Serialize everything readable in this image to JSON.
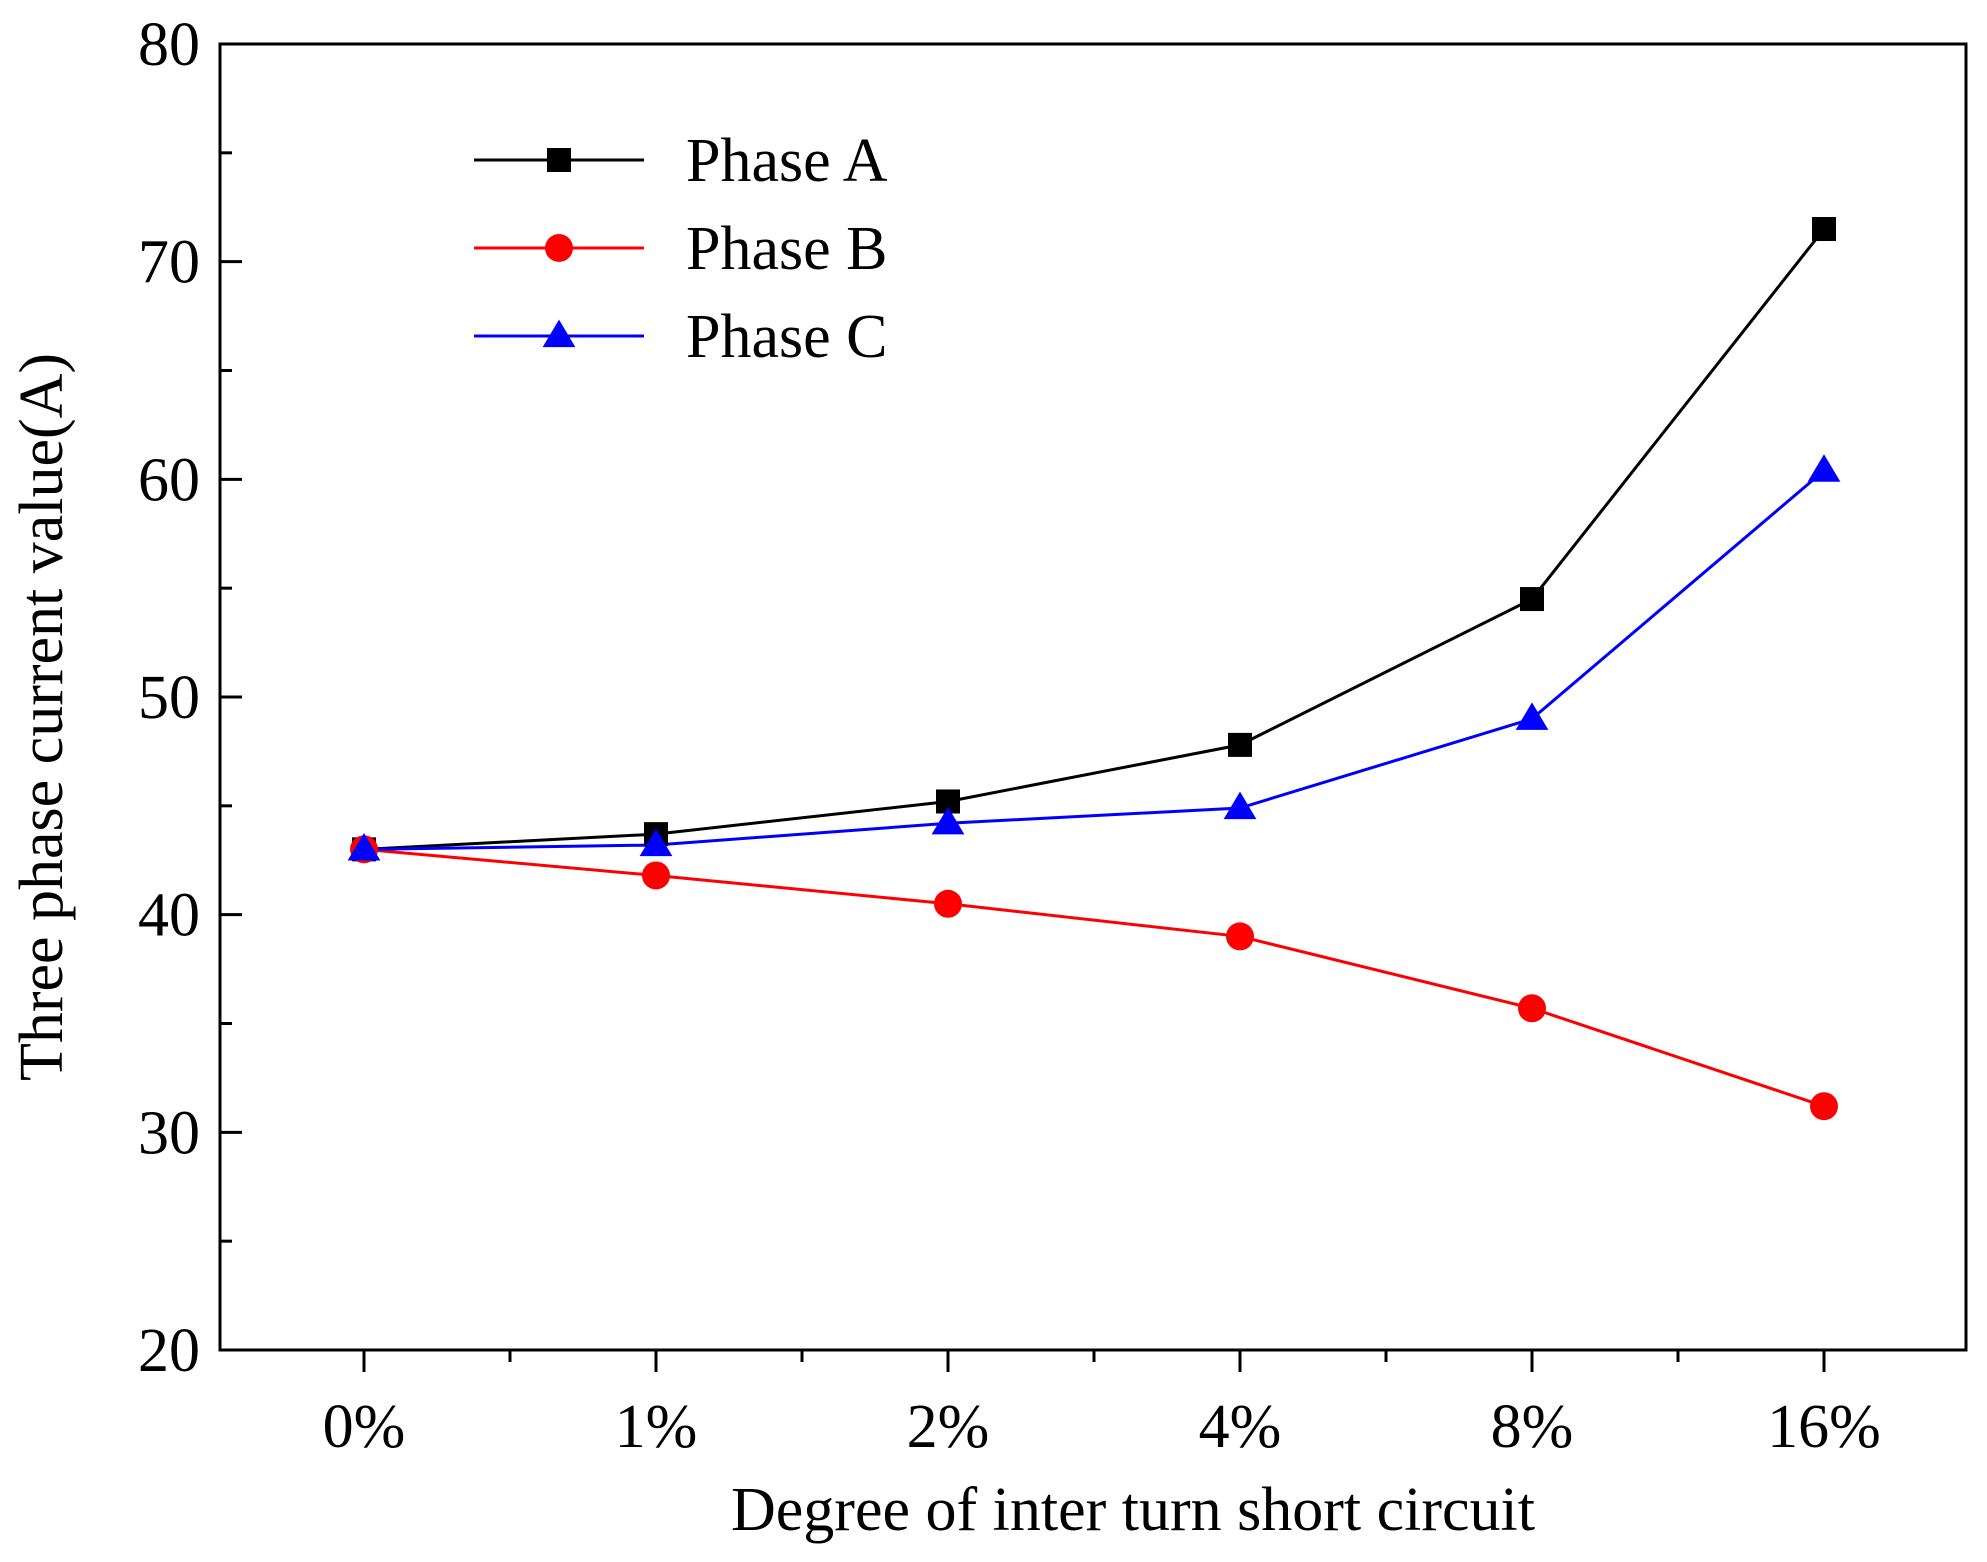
{
  "chart_data": {
    "type": "line",
    "title": "",
    "xlabel": "Degree of inter turn short circuit",
    "ylabel": "Three phase current value(A)",
    "categories": [
      "0%",
      "1%",
      "2%",
      "4%",
      "8%",
      "16%"
    ],
    "ylim": [
      20,
      80
    ],
    "yticks": [
      20,
      30,
      40,
      50,
      60,
      70,
      80
    ],
    "grid": false,
    "legend_position": "top-left",
    "series": [
      {
        "name": "Phase A",
        "color": "#000000",
        "marker": "square",
        "values": [
          43.0,
          43.7,
          45.2,
          47.8,
          54.5,
          71.5
        ]
      },
      {
        "name": "Phase B",
        "color": "#ff0000",
        "marker": "circle",
        "values": [
          43.0,
          41.8,
          40.5,
          39.0,
          35.7,
          31.2
        ]
      },
      {
        "name": "Phase C",
        "color": "#0000ff",
        "marker": "triangle",
        "values": [
          43.0,
          43.2,
          44.2,
          44.9,
          49.0,
          60.4
        ]
      }
    ]
  }
}
